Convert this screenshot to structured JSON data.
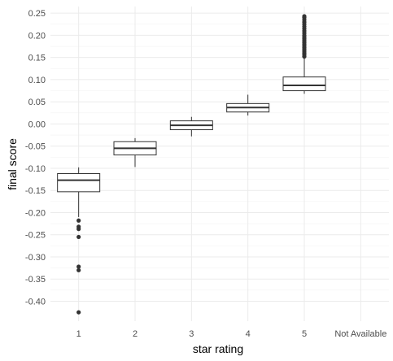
{
  "chart_data": {
    "type": "boxplot",
    "xlabel": "star rating",
    "ylabel": "final score",
    "categories": [
      "1",
      "2",
      "3",
      "4",
      "5",
      "Not Available"
    ],
    "ylim": [
      -0.445,
      0.265
    ],
    "yticks": [
      -0.4,
      -0.35,
      -0.3,
      -0.25,
      -0.2,
      -0.15,
      -0.1,
      -0.05,
      0.0,
      0.05,
      0.1,
      0.15,
      0.2,
      0.25
    ],
    "ytick_labels": [
      "-0.40",
      "-0.35",
      "-0.30",
      "-0.25",
      "-0.20",
      "-0.15",
      "-0.10",
      "-0.05",
      "0.00",
      "0.05",
      "0.10",
      "0.15",
      "0.20",
      "0.25"
    ],
    "grid": true,
    "legend": "none",
    "boxes": [
      {
        "category": "1",
        "whisker_low": -0.21,
        "q1": -0.153,
        "median": -0.127,
        "q3": -0.112,
        "whisker_high": -0.098,
        "outliers": [
          -0.218,
          -0.232,
          -0.237,
          -0.255,
          -0.322,
          -0.33,
          -0.425
        ]
      },
      {
        "category": "2",
        "whisker_low": -0.097,
        "q1": -0.07,
        "median": -0.055,
        "q3": -0.04,
        "whisker_high": -0.032,
        "outliers": []
      },
      {
        "category": "3",
        "whisker_low": -0.028,
        "q1": -0.013,
        "median": -0.003,
        "q3": 0.007,
        "whisker_high": 0.016,
        "outliers": []
      },
      {
        "category": "4",
        "whisker_low": 0.019,
        "q1": 0.027,
        "median": 0.037,
        "q3": 0.046,
        "whisker_high": 0.066,
        "outliers": []
      },
      {
        "category": "5",
        "whisker_low": 0.068,
        "q1": 0.075,
        "median": 0.087,
        "q3": 0.106,
        "whisker_high": 0.15,
        "outliers": [
          0.152,
          0.156,
          0.16,
          0.164,
          0.168,
          0.172,
          0.176,
          0.18,
          0.184,
          0.188,
          0.192,
          0.196,
          0.2,
          0.205,
          0.21,
          0.215,
          0.22,
          0.225,
          0.23,
          0.235,
          0.24,
          0.243
        ]
      }
    ],
    "colors": {
      "box_stroke": "#333333",
      "box_fill": "#ffffff",
      "grid": "#ebebeb",
      "text": "#4d4d4d"
    }
  }
}
